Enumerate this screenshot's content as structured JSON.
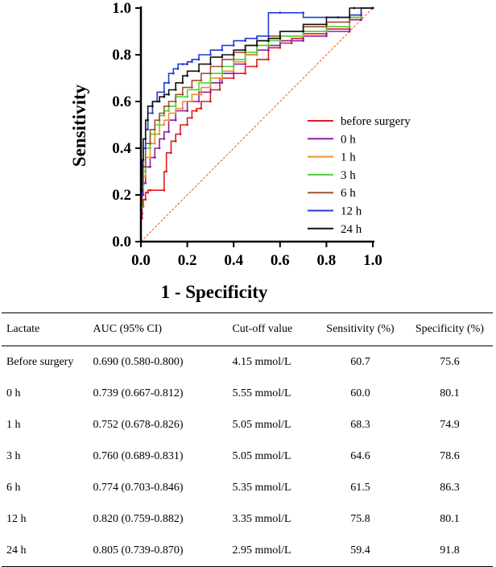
{
  "chart_data": {
    "type": "line",
    "title": "",
    "xlabel": "1 - Specificity",
    "ylabel": "Sensitivity",
    "xlim": [
      0,
      1
    ],
    "ylim": [
      0,
      1
    ],
    "xticks": [
      "0.0",
      "0.2",
      "0.4",
      "0.6",
      "0.8",
      "1.0"
    ],
    "yticks": [
      "0.0",
      "0.2",
      "0.4",
      "0.6",
      "0.8",
      "1.0"
    ],
    "legend_position": "bottom-right",
    "reference_line": {
      "name": "chance",
      "color": "#e8581b",
      "x": [
        0,
        1
      ],
      "y": [
        0,
        1
      ]
    },
    "series": [
      {
        "name": "before surgery",
        "color": "#e31a1c",
        "x": [
          0,
          0.005,
          0.01,
          0.02,
          0.03,
          0.04,
          0.1,
          0.11,
          0.13,
          0.15,
          0.17,
          0.2,
          0.22,
          0.24,
          0.26,
          0.3,
          0.34,
          0.4,
          0.45,
          0.5,
          0.55,
          0.6,
          0.65,
          0.7,
          0.8,
          0.9,
          0.95,
          1.0
        ],
        "y": [
          0,
          0.1,
          0.15,
          0.18,
          0.21,
          0.22,
          0.22,
          0.3,
          0.38,
          0.43,
          0.46,
          0.5,
          0.53,
          0.56,
          0.57,
          0.6,
          0.65,
          0.7,
          0.72,
          0.75,
          0.78,
          0.83,
          0.85,
          0.87,
          0.89,
          0.91,
          0.95,
          1.0
        ]
      },
      {
        "name": "0 h",
        "color": "#8b1fa6",
        "x": [
          0,
          0.005,
          0.01,
          0.02,
          0.04,
          0.06,
          0.08,
          0.1,
          0.12,
          0.15,
          0.2,
          0.25,
          0.3,
          0.35,
          0.4,
          0.45,
          0.5,
          0.55,
          0.6,
          0.7,
          0.8,
          0.9,
          0.95,
          1.0
        ],
        "y": [
          0,
          0.12,
          0.2,
          0.25,
          0.32,
          0.36,
          0.4,
          0.44,
          0.47,
          0.52,
          0.56,
          0.6,
          0.64,
          0.68,
          0.72,
          0.76,
          0.8,
          0.82,
          0.84,
          0.86,
          0.88,
          0.9,
          0.95,
          1.0
        ]
      },
      {
        "name": "1 h",
        "color": "#f28e2b",
        "x": [
          0,
          0.005,
          0.01,
          0.02,
          0.04,
          0.06,
          0.08,
          0.1,
          0.12,
          0.15,
          0.18,
          0.22,
          0.26,
          0.3,
          0.35,
          0.4,
          0.45,
          0.5,
          0.55,
          0.6,
          0.7,
          0.8,
          0.9,
          0.95,
          1.0
        ],
        "y": [
          0,
          0.14,
          0.22,
          0.28,
          0.36,
          0.42,
          0.46,
          0.5,
          0.52,
          0.55,
          0.57,
          0.6,
          0.63,
          0.66,
          0.7,
          0.73,
          0.77,
          0.8,
          0.84,
          0.87,
          0.88,
          0.9,
          0.92,
          0.96,
          1.0
        ]
      },
      {
        "name": "3 h",
        "color": "#4cd43c",
        "x": [
          0,
          0.005,
          0.01,
          0.02,
          0.04,
          0.06,
          0.08,
          0.1,
          0.12,
          0.15,
          0.2,
          0.25,
          0.3,
          0.35,
          0.4,
          0.45,
          0.5,
          0.55,
          0.6,
          0.7,
          0.8,
          0.9,
          0.95,
          1.0
        ],
        "y": [
          0,
          0.15,
          0.24,
          0.3,
          0.4,
          0.46,
          0.5,
          0.54,
          0.56,
          0.58,
          0.62,
          0.65,
          0.68,
          0.72,
          0.75,
          0.78,
          0.81,
          0.84,
          0.86,
          0.88,
          0.9,
          0.92,
          0.96,
          1.0
        ]
      },
      {
        "name": "6 h",
        "color": "#a0522d",
        "x": [
          0,
          0.005,
          0.01,
          0.02,
          0.04,
          0.06,
          0.08,
          0.1,
          0.12,
          0.15,
          0.18,
          0.22,
          0.26,
          0.3,
          0.35,
          0.4,
          0.45,
          0.5,
          0.55,
          0.6,
          0.7,
          0.8,
          0.9,
          0.95,
          1.0
        ],
        "y": [
          0,
          0.16,
          0.25,
          0.32,
          0.42,
          0.48,
          0.52,
          0.55,
          0.58,
          0.6,
          0.63,
          0.66,
          0.69,
          0.72,
          0.75,
          0.78,
          0.81,
          0.84,
          0.86,
          0.88,
          0.9,
          0.92,
          0.94,
          0.97,
          1.0
        ]
      },
      {
        "name": "12 h",
        "color": "#1f3cd6",
        "x": [
          0,
          0.005,
          0.01,
          0.02,
          0.03,
          0.05,
          0.07,
          0.1,
          0.12,
          0.14,
          0.16,
          0.18,
          0.2,
          0.22,
          0.25,
          0.3,
          0.35,
          0.4,
          0.45,
          0.5,
          0.55,
          0.6,
          0.7,
          0.8,
          0.85,
          0.9,
          0.95,
          1.0
        ],
        "y": [
          0,
          0.2,
          0.32,
          0.4,
          0.48,
          0.55,
          0.6,
          0.64,
          0.68,
          0.72,
          0.74,
          0.76,
          0.76,
          0.77,
          0.78,
          0.8,
          0.82,
          0.84,
          0.86,
          0.87,
          0.88,
          0.98,
          0.98,
          0.96,
          0.96,
          0.96,
          0.97,
          1.0
        ]
      },
      {
        "name": "24 h",
        "color": "#111111",
        "x": [
          0,
          0.005,
          0.01,
          0.02,
          0.03,
          0.05,
          0.08,
          0.1,
          0.12,
          0.15,
          0.18,
          0.2,
          0.25,
          0.3,
          0.35,
          0.4,
          0.45,
          0.5,
          0.55,
          0.6,
          0.7,
          0.8,
          0.9,
          0.92,
          1.0
        ],
        "y": [
          0,
          0.22,
          0.35,
          0.44,
          0.52,
          0.58,
          0.6,
          0.62,
          0.63,
          0.65,
          0.68,
          0.71,
          0.73,
          0.76,
          0.79,
          0.8,
          0.82,
          0.84,
          0.86,
          0.87,
          0.9,
          0.93,
          0.96,
          1.0,
          1.0
        ]
      }
    ]
  },
  "table": {
    "columns": [
      "Lactate",
      "AUC (95% CI)",
      "Cut-off value",
      "Sensitivity (%)",
      "Specificity (%)"
    ],
    "rows": [
      [
        "Before surgery",
        "0.690 (0.580-0.800)",
        "4.15 mmol/L",
        "60.7",
        "75.6"
      ],
      [
        "0 h",
        "0.739 (0.667-0.812)",
        "5.55 mmol/L",
        "60.0",
        "80.1"
      ],
      [
        "1 h",
        "0.752 (0.678-0.826)",
        "5.05 mmol/L",
        "68.3",
        "74.9"
      ],
      [
        "3 h",
        "0.760 (0.689-0.831)",
        "5.05 mmol/L",
        "64.6",
        "78.6"
      ],
      [
        "6 h",
        "0.774 (0.703-0.846)",
        "5.35 mmol/L",
        "61.5",
        "86.3"
      ],
      [
        "12 h",
        "0.820 (0.759-0.882)",
        "3.35 mmol/L",
        "75.8",
        "80.1"
      ],
      [
        "24 h",
        "0.805 (0.739-0.870)",
        "2.95 mmol/L",
        "59.4",
        "91.8"
      ]
    ]
  }
}
